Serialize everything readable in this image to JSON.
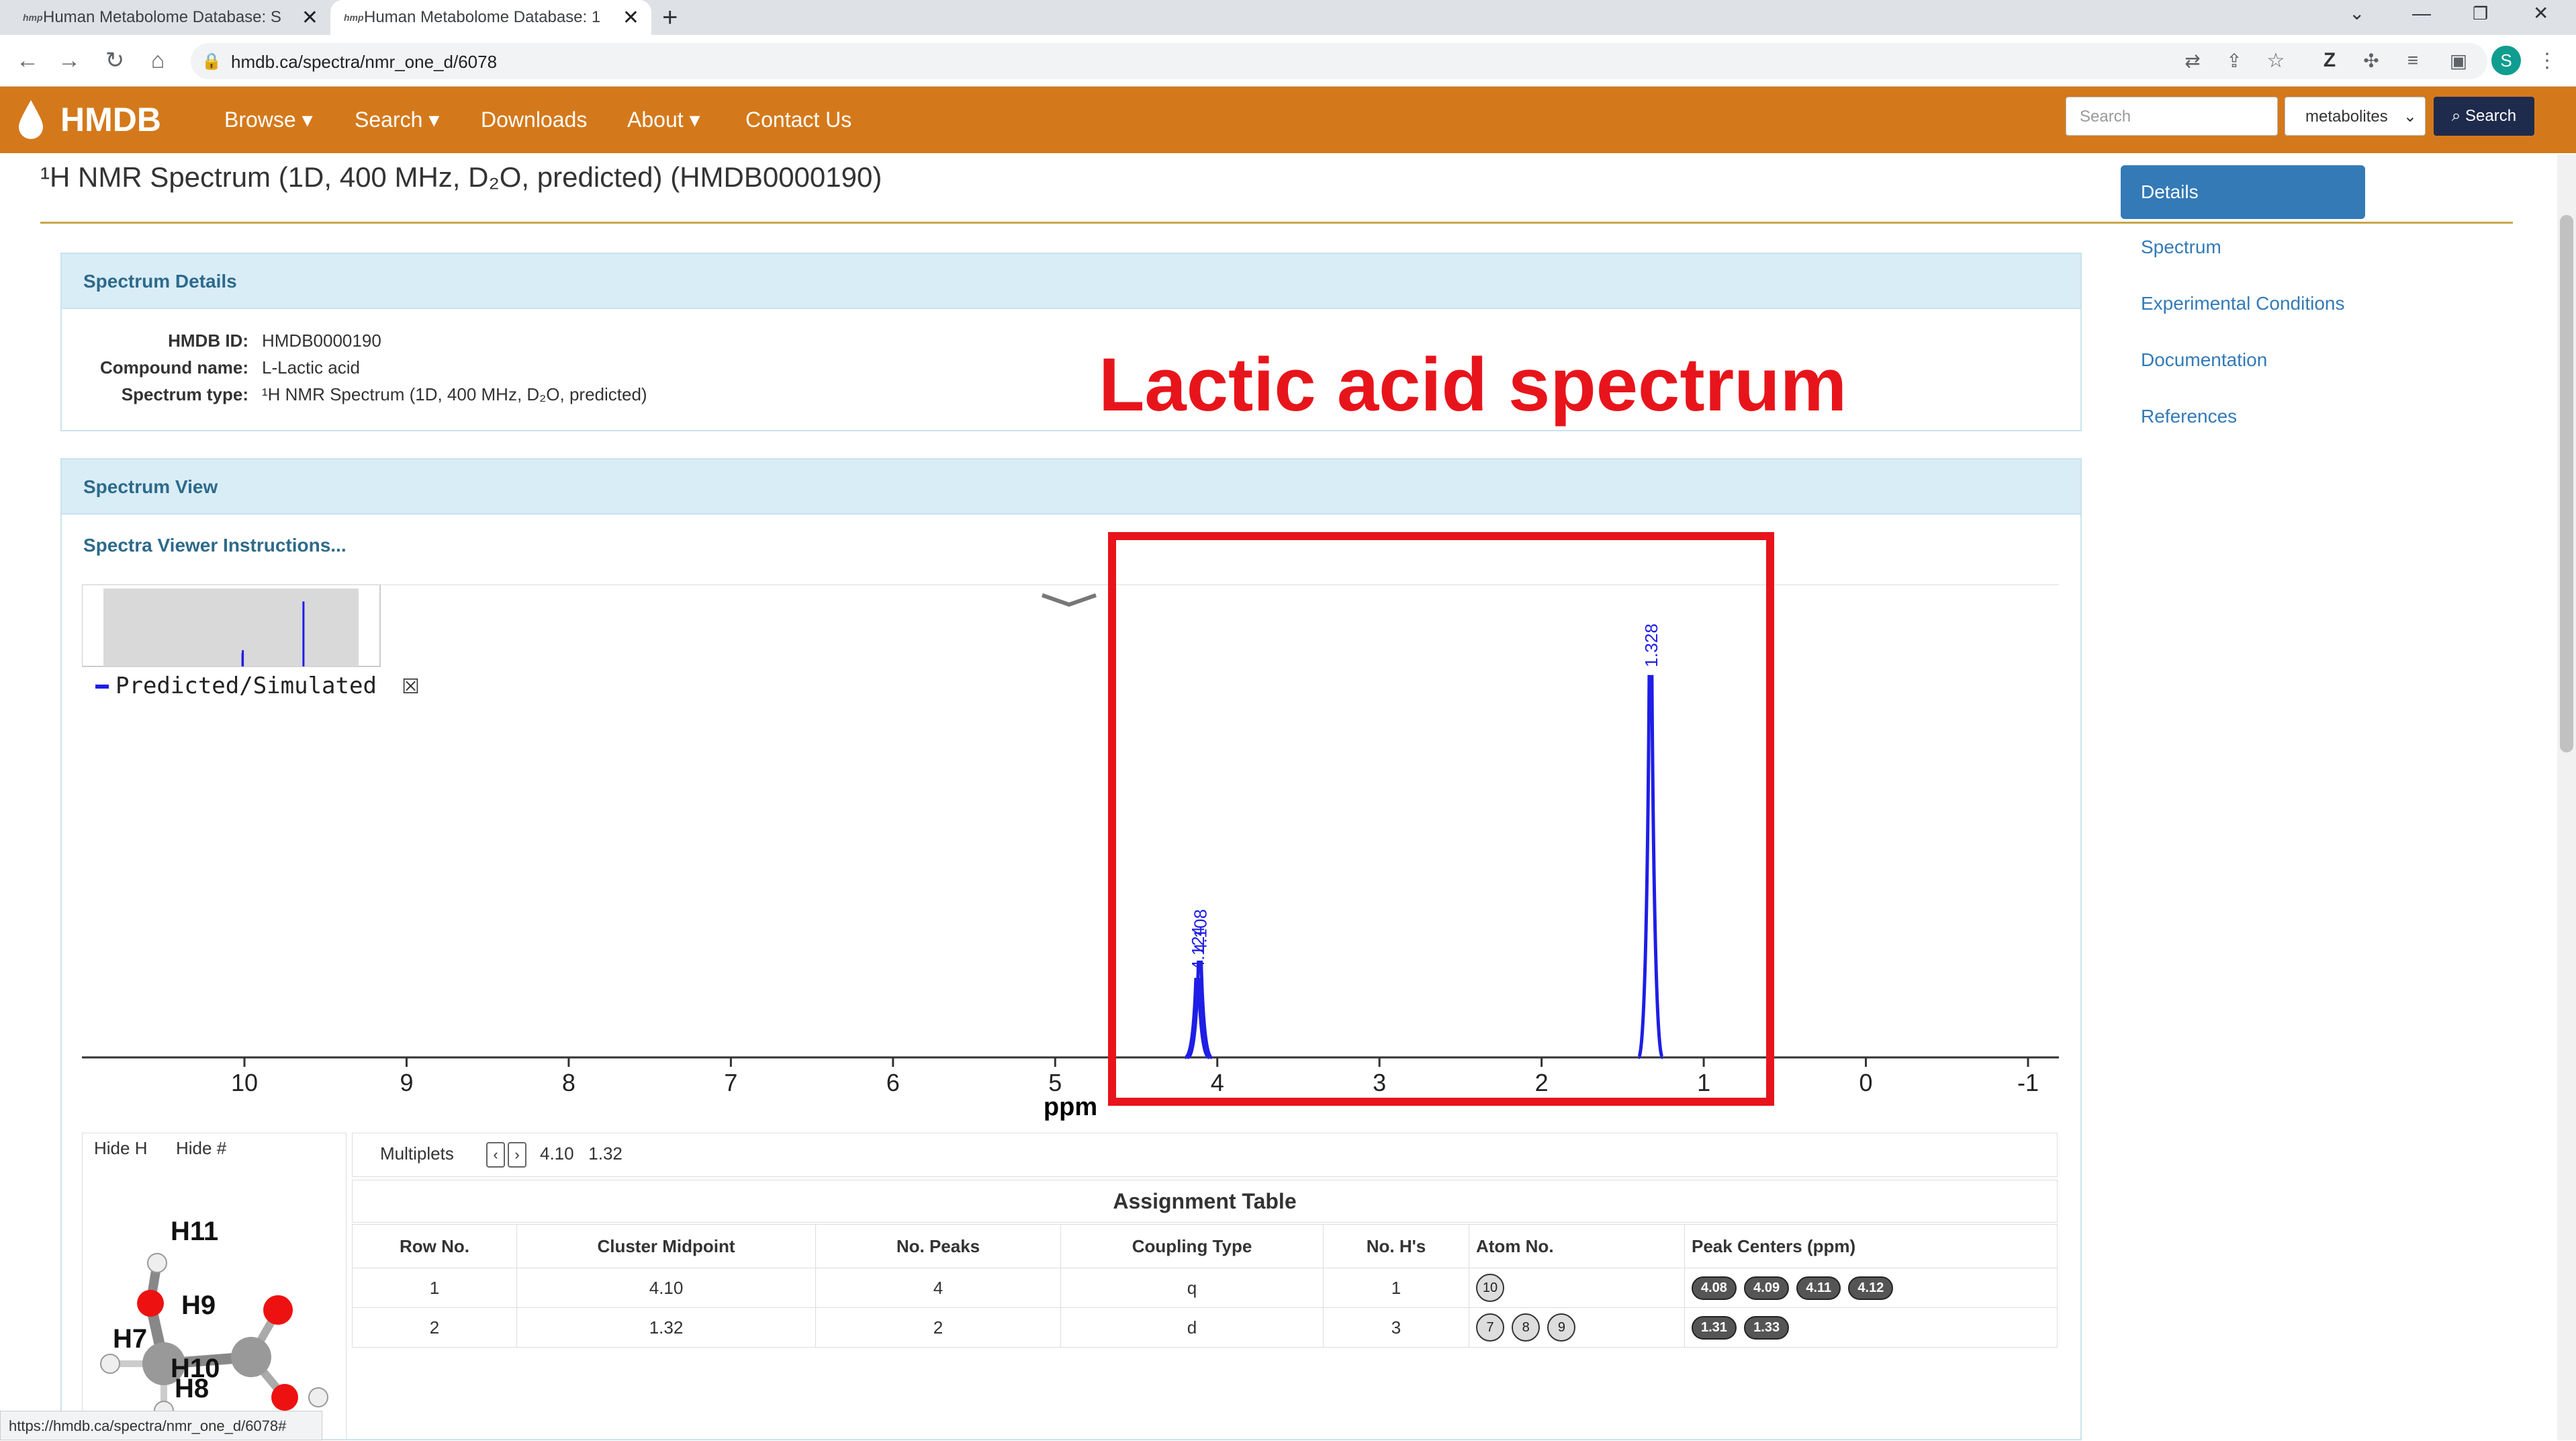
{
  "browser": {
    "tabs": [
      {
        "label": "Human Metabolome Database: S",
        "favicon": "hmp"
      },
      {
        "label": "Human Metabolome Database: 1",
        "favicon": "hmp"
      }
    ],
    "url": "hmdb.ca/spectra/nmr_one_d/6078",
    "profile_initial": "S",
    "status_url": "https://hmdb.ca/spectra/nmr_one_d/6078#"
  },
  "nav": {
    "logo": "HMDB",
    "items": [
      "Browse ▾",
      "Search ▾",
      "Downloads",
      "About ▾",
      "Contact Us"
    ],
    "search_placeholder": "Search",
    "select_value": "metabolites",
    "search_button": "Search"
  },
  "page": {
    "title": "¹H NMR Spectrum (1D, 400 MHz, D₂O, predicted) (HMDB0000190)"
  },
  "details": {
    "header": "Spectrum Details",
    "rows": [
      {
        "key": "HMDB ID:",
        "value": "HMDB0000190"
      },
      {
        "key": "Compound name:",
        "value": "L-Lactic acid"
      },
      {
        "key": "Spectrum type:",
        "value": "¹H NMR Spectrum (1D, 400 MHz, D₂O, predicted)"
      }
    ]
  },
  "annotation": "Lactic acid spectrum",
  "sidenav": {
    "active": "Details",
    "links": [
      "Spectrum",
      "Experimental Conditions",
      "Documentation",
      "References"
    ]
  },
  "view": {
    "header": "Spectrum View",
    "instructions": "Spectra Viewer Instructions...",
    "legend": "Predicted/Simulated",
    "axis_label": "ppm"
  },
  "chart_data": {
    "type": "line",
    "xlabel": "ppm",
    "xlim": [
      10.5,
      -1.2
    ],
    "x_ticks": [
      "10",
      "9",
      "8",
      "7",
      "6",
      "5",
      "4",
      "3",
      "2",
      "1",
      "0",
      "-1"
    ],
    "series": [
      {
        "name": "Predicted/Simulated",
        "peaks": [
          {
            "ppm": 4.124,
            "label": "4.124",
            "height": 0.18
          },
          {
            "ppm": 4.108,
            "label": "4.108",
            "height": 0.22
          },
          {
            "ppm": 1.328,
            "label": "1.328",
            "height": 0.88
          }
        ]
      }
    ],
    "color": "#1e1ee6"
  },
  "bottom": {
    "hide_h": "Hide H",
    "hide_num": "Hide #",
    "multiplets_label": "Multiplets",
    "multiplets_values": "4.10   1.32",
    "molecule_labels": [
      "H11",
      "H9",
      "H7",
      "H10",
      "H8"
    ],
    "table_title": "Assignment Table",
    "columns": [
      "Row No.",
      "Cluster Midpoint",
      "No. Peaks",
      "Coupling Type",
      "No. H's",
      "Atom No.",
      "Peak Centers (ppm)"
    ],
    "rows": [
      {
        "row": "1",
        "mid": "4.10",
        "peaks": "4",
        "coupling": "q",
        "nh": "1",
        "atoms": [
          "10"
        ],
        "centers": [
          "4.08",
          "4.09",
          "4.11",
          "4.12"
        ]
      },
      {
        "row": "2",
        "mid": "1.32",
        "peaks": "2",
        "coupling": "d",
        "nh": "3",
        "atoms": [
          "7",
          "8",
          "9"
        ],
        "centers": [
          "1.31",
          "1.33"
        ]
      }
    ]
  }
}
